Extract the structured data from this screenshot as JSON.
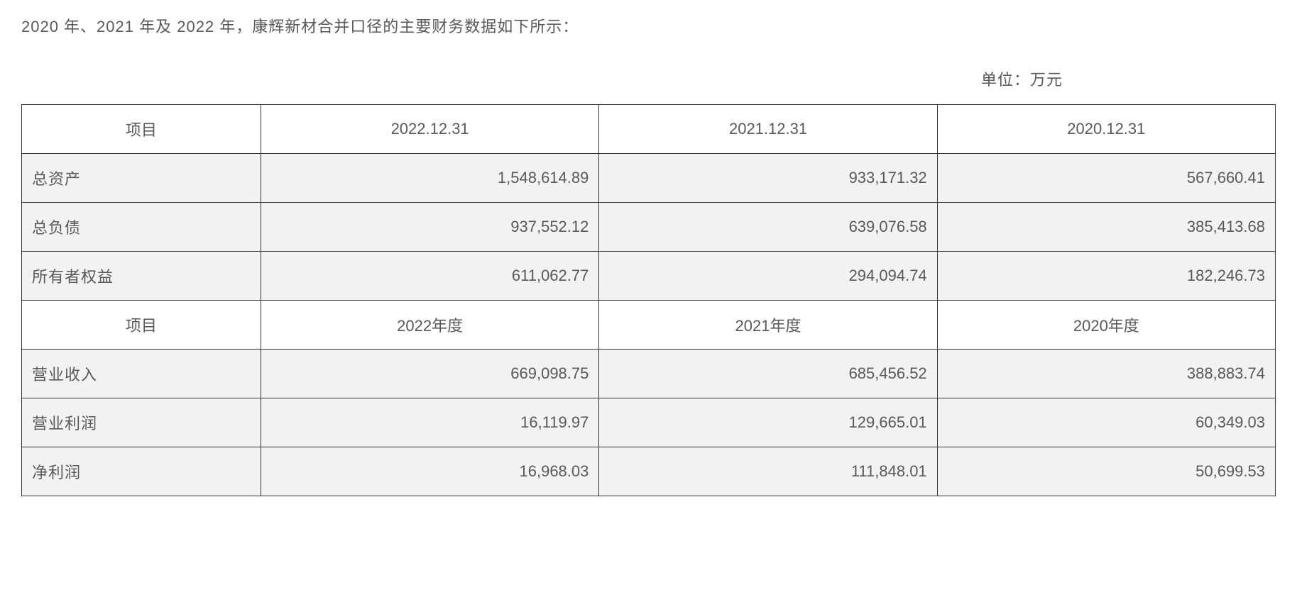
{
  "intro": "2020 年、2021 年及 2022 年，康辉新材合并口径的主要财务数据如下所示：",
  "unit": "单位：万元",
  "table": {
    "header1": {
      "item": "项目",
      "c1": "2022.12.31",
      "c2": "2021.12.31",
      "c3": "2020.12.31"
    },
    "rows1": [
      {
        "label": "总资产",
        "v1": "1,548,614.89",
        "v2": "933,171.32",
        "v3": "567,660.41"
      },
      {
        "label": "总负债",
        "v1": "937,552.12",
        "v2": "639,076.58",
        "v3": "385,413.68"
      },
      {
        "label": "所有者权益",
        "v1": "611,062.77",
        "v2": "294,094.74",
        "v3": "182,246.73"
      }
    ],
    "header2": {
      "item": "项目",
      "c1": "2022年度",
      "c2": "2021年度",
      "c3": "2020年度"
    },
    "rows2": [
      {
        "label": "营业收入",
        "v1": "669,098.75",
        "v2": "685,456.52",
        "v3": "388,883.74"
      },
      {
        "label": "营业利润",
        "v1": "16,119.97",
        "v2": "129,665.01",
        "v3": "60,349.03"
      },
      {
        "label": "净利润",
        "v1": "16,968.03",
        "v2": "111,848.01",
        "v3": "50,699.53"
      }
    ]
  },
  "styling": {
    "text_color": "#595959",
    "border_color": "#333333",
    "row_bg": "#f2f2f2",
    "header_bg": "#ffffff",
    "font_size": 22,
    "cell_padding_v": 18,
    "cell_padding_h": 14
  }
}
